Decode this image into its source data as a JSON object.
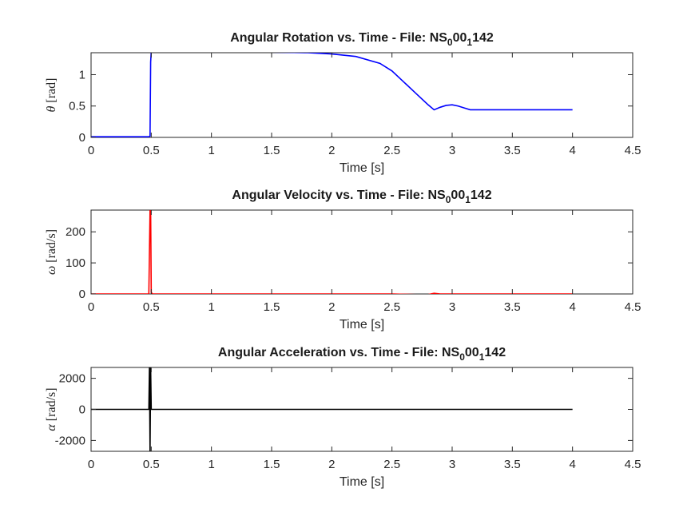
{
  "chart_data": [
    {
      "type": "line",
      "title": {
        "main": "Angular Rotation vs. Time - File: NS",
        "sub1": "0",
        "mid": "00",
        "sub2": "1",
        "end": "142"
      },
      "xlabel": "Time [s]",
      "ylabel": {
        "symbol": "θ",
        "unit": "[rad]"
      },
      "xlim": [
        0,
        4.5
      ],
      "ylim": [
        0,
        1.35
      ],
      "xticks": [
        "0",
        "0.5",
        "1",
        "1.5",
        "2",
        "2.5",
        "3",
        "3.5",
        "4",
        "4.5"
      ],
      "xtick_values": [
        0,
        0.5,
        1,
        1.5,
        2,
        2.5,
        3,
        3.5,
        4,
        4.5
      ],
      "yticks": [
        "0",
        "0.5",
        "1"
      ],
      "ytick_values": [
        0,
        0.5,
        1
      ],
      "series": [
        {
          "name": "theta",
          "color": "#0000ff",
          "x": [
            0,
            0.48,
            0.49,
            0.495,
            0.5,
            1.0,
            1.5,
            1.8,
            2.0,
            2.2,
            2.4,
            2.5,
            2.6,
            2.7,
            2.8,
            2.85,
            2.9,
            2.95,
            3.0,
            3.05,
            3.1,
            3.15,
            3.2,
            3.3,
            3.5,
            4.0
          ],
          "y": [
            0.01,
            0.01,
            0.02,
            1.2,
            1.37,
            1.37,
            1.36,
            1.35,
            1.33,
            1.29,
            1.18,
            1.06,
            0.88,
            0.7,
            0.52,
            0.44,
            0.48,
            0.51,
            0.52,
            0.5,
            0.47,
            0.44,
            0.44,
            0.44,
            0.44,
            0.44
          ]
        }
      ]
    },
    {
      "type": "line",
      "title": {
        "main": "Angular Velocity vs. Time - File: NS",
        "sub1": "0",
        "mid": "00",
        "sub2": "1",
        "end": "142"
      },
      "xlabel": "Time [s]",
      "ylabel": {
        "symbol": "ω",
        "unit": "[rad/s]"
      },
      "xlim": [
        0,
        4.5
      ],
      "ylim": [
        0,
        270
      ],
      "xticks": [
        "0",
        "0.5",
        "1",
        "1.5",
        "2",
        "2.5",
        "3",
        "3.5",
        "4",
        "4.5"
      ],
      "xtick_values": [
        0,
        0.5,
        1,
        1.5,
        2,
        2.5,
        3,
        3.5,
        4,
        4.5
      ],
      "yticks": [
        "0",
        "100",
        "200"
      ],
      "ytick_values": [
        0,
        100,
        200
      ],
      "series": [
        {
          "name": "omega",
          "color": "#ff0000",
          "x": [
            0,
            0.48,
            0.49,
            0.495,
            0.5,
            0.51,
            1.0,
            2.5,
            2.6,
            2.7,
            2.8,
            2.85,
            2.9,
            3.0,
            4.0
          ],
          "y": [
            0,
            0,
            270,
            270,
            5,
            0,
            0,
            0,
            -1,
            -2,
            -2,
            2,
            0,
            0,
            0
          ]
        }
      ]
    },
    {
      "type": "line",
      "title": {
        "main": "Angular Acceleration vs. Time - File: NS",
        "sub1": "0",
        "mid": "00",
        "sub2": "1",
        "end": "142"
      },
      "xlabel": "Time [s]",
      "ylabel": {
        "symbol": "α",
        "unit": "[rad/s]"
      },
      "xlim": [
        0,
        4.5
      ],
      "ylim": [
        -2700,
        2700
      ],
      "xticks": [
        "0",
        "0.5",
        "1",
        "1.5",
        "2",
        "2.5",
        "3",
        "3.5",
        "4",
        "4.5"
      ],
      "xtick_values": [
        0,
        0.5,
        1,
        1.5,
        2,
        2.5,
        3,
        3.5,
        4,
        4.5
      ],
      "yticks": [
        "-2000",
        "0",
        "2000"
      ],
      "ytick_values": [
        -2000,
        0,
        2000
      ],
      "series": [
        {
          "name": "alpha",
          "color": "#000000",
          "x": [
            0,
            0.48,
            0.485,
            0.49,
            0.495,
            0.5,
            4.0
          ],
          "y": [
            0,
            0,
            2700,
            -2700,
            2700,
            0,
            0
          ]
        }
      ]
    }
  ]
}
